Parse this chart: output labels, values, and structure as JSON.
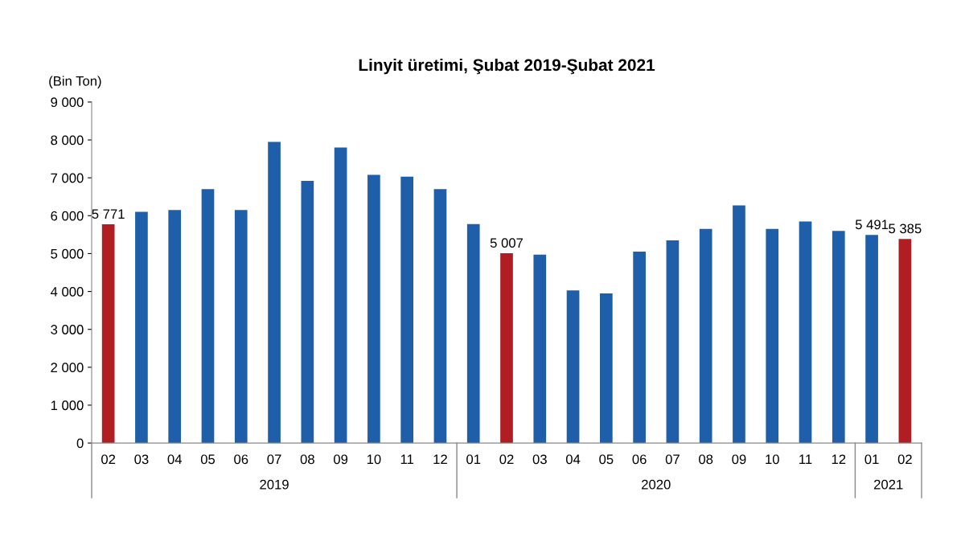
{
  "chart_data": {
    "type": "bar",
    "title": "Linyit üretimi, Şubat 2019-Şubat 2021",
    "ylabel": "(Bin Ton)",
    "categories": [
      "02",
      "03",
      "04",
      "05",
      "06",
      "07",
      "08",
      "09",
      "10",
      "11",
      "12",
      "01",
      "02",
      "03",
      "04",
      "05",
      "06",
      "07",
      "08",
      "09",
      "10",
      "11",
      "12",
      "01",
      "02"
    ],
    "values": [
      5771,
      6100,
      6150,
      6700,
      6150,
      7950,
      6920,
      7800,
      7080,
      7030,
      6700,
      5780,
      5007,
      4970,
      4030,
      3950,
      5050,
      5350,
      5650,
      6270,
      5650,
      5850,
      5600,
      5491,
      5385
    ],
    "colors": [
      "#b01e23",
      "#1f5ea8",
      "#1f5ea8",
      "#1f5ea8",
      "#1f5ea8",
      "#1f5ea8",
      "#1f5ea8",
      "#1f5ea8",
      "#1f5ea8",
      "#1f5ea8",
      "#1f5ea8",
      "#1f5ea8",
      "#b01e23",
      "#1f5ea8",
      "#1f5ea8",
      "#1f5ea8",
      "#1f5ea8",
      "#1f5ea8",
      "#1f5ea8",
      "#1f5ea8",
      "#1f5ea8",
      "#1f5ea8",
      "#1f5ea8",
      "#1f5ea8",
      "#b01e23"
    ],
    "value_labels": [
      "5 771",
      null,
      null,
      null,
      null,
      null,
      null,
      null,
      null,
      null,
      null,
      null,
      "5 007",
      null,
      null,
      null,
      null,
      null,
      null,
      null,
      null,
      null,
      null,
      "5 491",
      "5 385"
    ],
    "ylim": [
      0,
      9000
    ],
    "yticks": [
      {
        "value": 0,
        "label": "0"
      },
      {
        "value": 1000,
        "label": "1 000"
      },
      {
        "value": 2000,
        "label": "2 000"
      },
      {
        "value": 3000,
        "label": "3 000"
      },
      {
        "value": 4000,
        "label": "4 000"
      },
      {
        "value": 5000,
        "label": "5 000"
      },
      {
        "value": 6000,
        "label": "6 000"
      },
      {
        "value": 7000,
        "label": "7 000"
      },
      {
        "value": 8000,
        "label": "8 000"
      },
      {
        "value": 9000,
        "label": "9 000"
      }
    ],
    "annotations": [
      "2019",
      "2020",
      "2021"
    ],
    "grid": false,
    "legend": false
  }
}
